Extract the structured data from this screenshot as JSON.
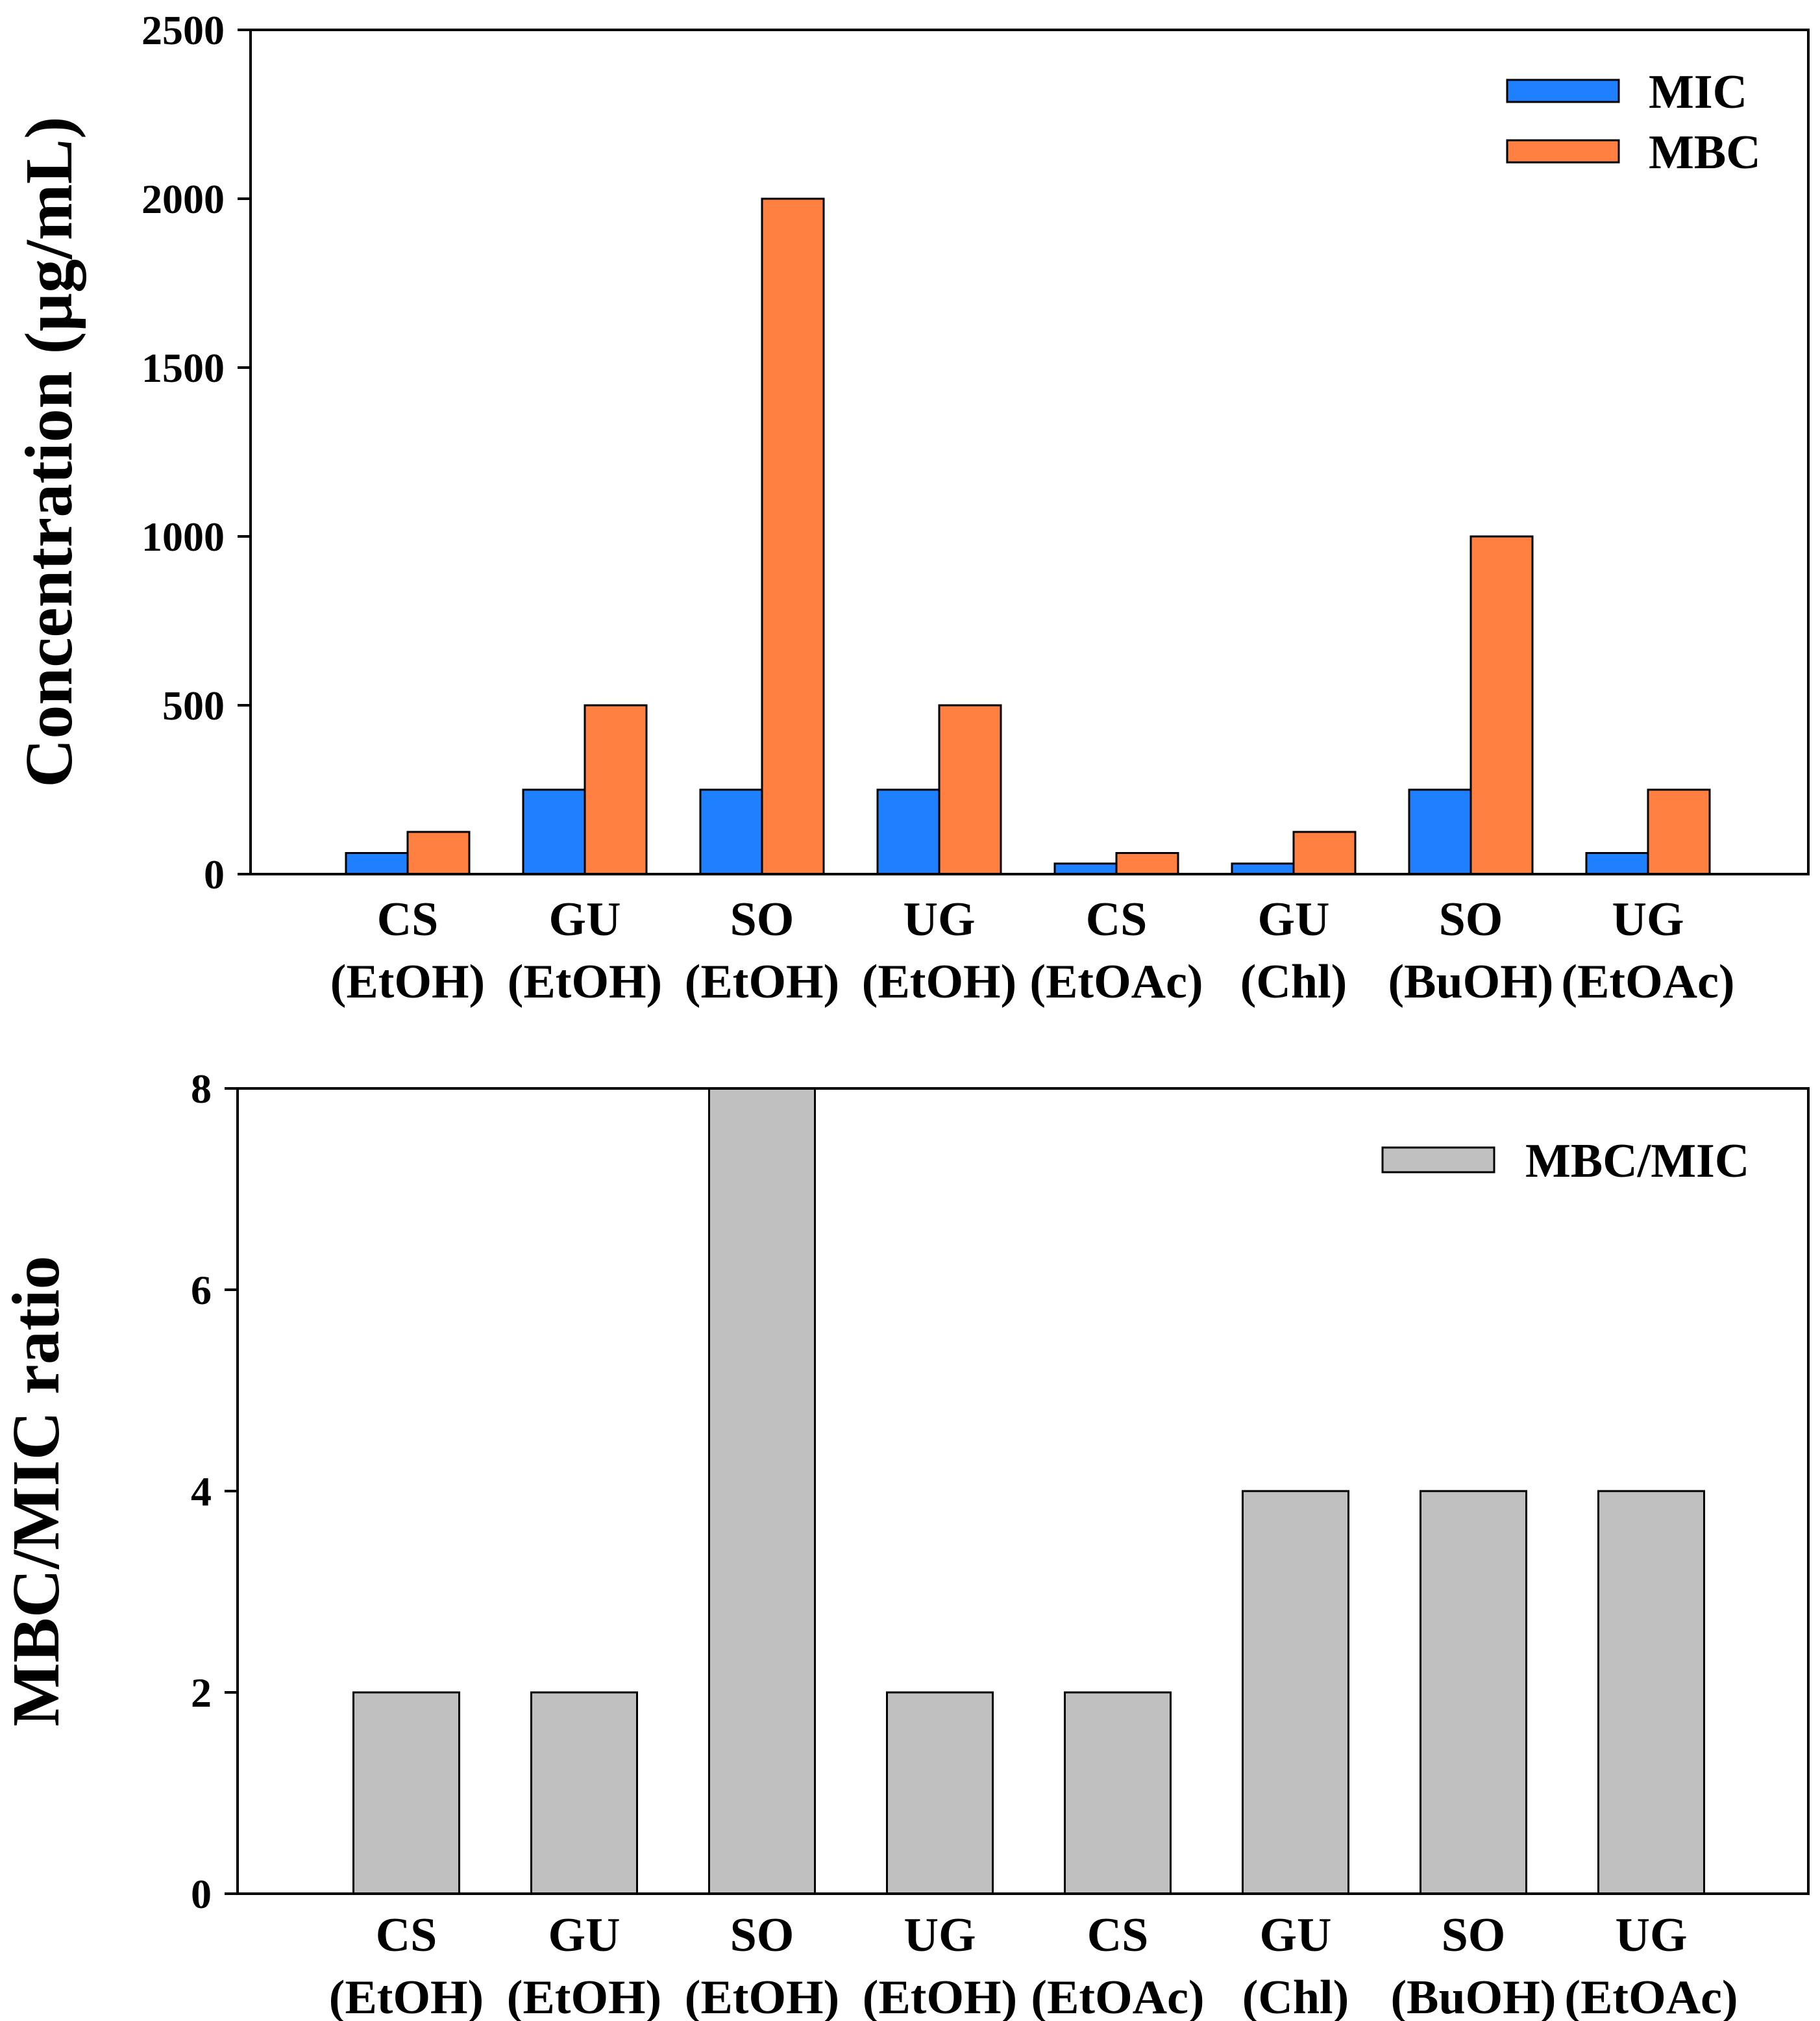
{
  "chart_data": [
    {
      "type": "bar",
      "categories": [
        [
          "CS",
          "(EtOH)"
        ],
        [
          "GU",
          "(EtOH)"
        ],
        [
          "SO",
          "(EtOH)"
        ],
        [
          "UG",
          "(EtOH)"
        ],
        [
          "CS",
          "(EtOAc)"
        ],
        [
          "GU",
          "(Chl)"
        ],
        [
          "SO",
          "(BuOH)"
        ],
        [
          "UG",
          "(EtOAc)"
        ]
      ],
      "series": [
        {
          "name": "MIC",
          "color": "#1E7FFF",
          "values": [
            62.5,
            250,
            250,
            250,
            31.25,
            31.25,
            250,
            62.5
          ]
        },
        {
          "name": "MBC",
          "color": "#FF8040",
          "values": [
            125,
            500,
            2000,
            500,
            62.5,
            125,
            1000,
            250
          ]
        }
      ],
      "ylabel": "Concentration (µg/mL)",
      "ylim": [
        0,
        2500
      ],
      "yticks": [
        "0",
        "500",
        "1000",
        "1500",
        "2000",
        "2500"
      ],
      "legend_position": "top-right"
    },
    {
      "type": "bar",
      "categories": [
        [
          "CS",
          "(EtOH)"
        ],
        [
          "GU",
          "(EtOH)"
        ],
        [
          "SO",
          "(EtOH)"
        ],
        [
          "UG",
          "(EtOH)"
        ],
        [
          "CS",
          "(EtOAc)"
        ],
        [
          "GU",
          "(Chl)"
        ],
        [
          "SO",
          "(BuOH)"
        ],
        [
          "UG",
          "(EtOAc)"
        ]
      ],
      "series": [
        {
          "name": "MBC/MIC",
          "color": "#C0C0C0",
          "values": [
            2,
            2,
            8,
            2,
            2,
            4,
            4,
            4
          ]
        }
      ],
      "ylabel": "MBC/MIC ratio",
      "ylim": [
        0,
        8
      ],
      "yticks": [
        "0",
        "2",
        "4",
        "6",
        "8"
      ],
      "legend_position": "top-right"
    }
  ]
}
